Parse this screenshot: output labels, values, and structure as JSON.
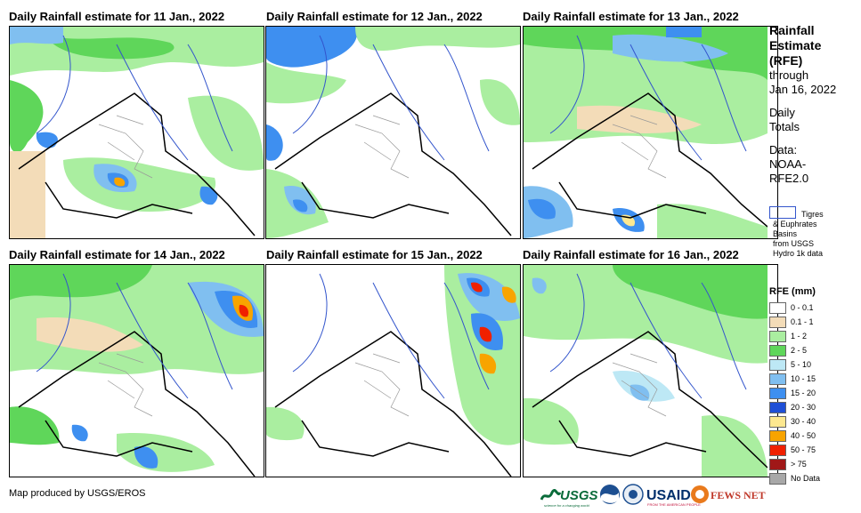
{
  "panels": [
    {
      "title": "Daily Rainfall estimate for 11 Jan., 2022"
    },
    {
      "title": "Daily Rainfall estimate for 12 Jan., 2022"
    },
    {
      "title": "Daily Rainfall estimate for 13 Jan., 2022"
    },
    {
      "title": "Daily Rainfall estimate for 14 Jan., 2022"
    },
    {
      "title": "Daily Rainfall estimate for 15 Jan., 2022"
    },
    {
      "title": "Daily Rainfall estimate for 16 Jan., 2022"
    }
  ],
  "sidebar": {
    "title_line1": "Rainfall",
    "title_line2": "Estimate",
    "title_line3": "(RFE)",
    "through": "through",
    "date": "Jan 16, 2022",
    "daily": "Daily",
    "totals": "Totals",
    "data_label": "Data:",
    "source_line1": "NOAA-",
    "source_line2": "RFE2.0"
  },
  "basin_key": {
    "line1": "Tigres",
    "line2": "& Euphrates",
    "line3": "Basins",
    "line4": "from USGS",
    "line5": "Hydro 1k data",
    "color": "#3355cc"
  },
  "legend": {
    "title": "RFE (mm)",
    "items": [
      {
        "label": "0 - 0.1",
        "color": "#ffffff"
      },
      {
        "label": "0.1 - 1",
        "color": "#f3dcb8"
      },
      {
        "label": "1 - 2",
        "color": "#aaeea0"
      },
      {
        "label": "2 - 5",
        "color": "#5fd65a"
      },
      {
        "label": "5 - 10",
        "color": "#bde8f5"
      },
      {
        "label": "10 - 15",
        "color": "#80bff0"
      },
      {
        "label": "15 - 20",
        "color": "#3e8ff0"
      },
      {
        "label": "20 - 30",
        "color": "#1f4fd6"
      },
      {
        "label": "30 - 40",
        "color": "#fde890"
      },
      {
        "label": "40 - 50",
        "color": "#f8a400"
      },
      {
        "label": "50 - 75",
        "color": "#f02000"
      },
      {
        "label": "> 75",
        "color": "#a01818"
      },
      {
        "label": "No Data",
        "color": "#a8a8a8"
      }
    ]
  },
  "footer": {
    "credit": "Map produced by USGS/EROS"
  },
  "logos": {
    "usgs": "USGS",
    "usgs_tag": "science for a changing world",
    "usaid": "USAID",
    "usaid_tag": "FROM THE AMERICAN PEOPLE",
    "fewsnet": "FEWS NET"
  }
}
